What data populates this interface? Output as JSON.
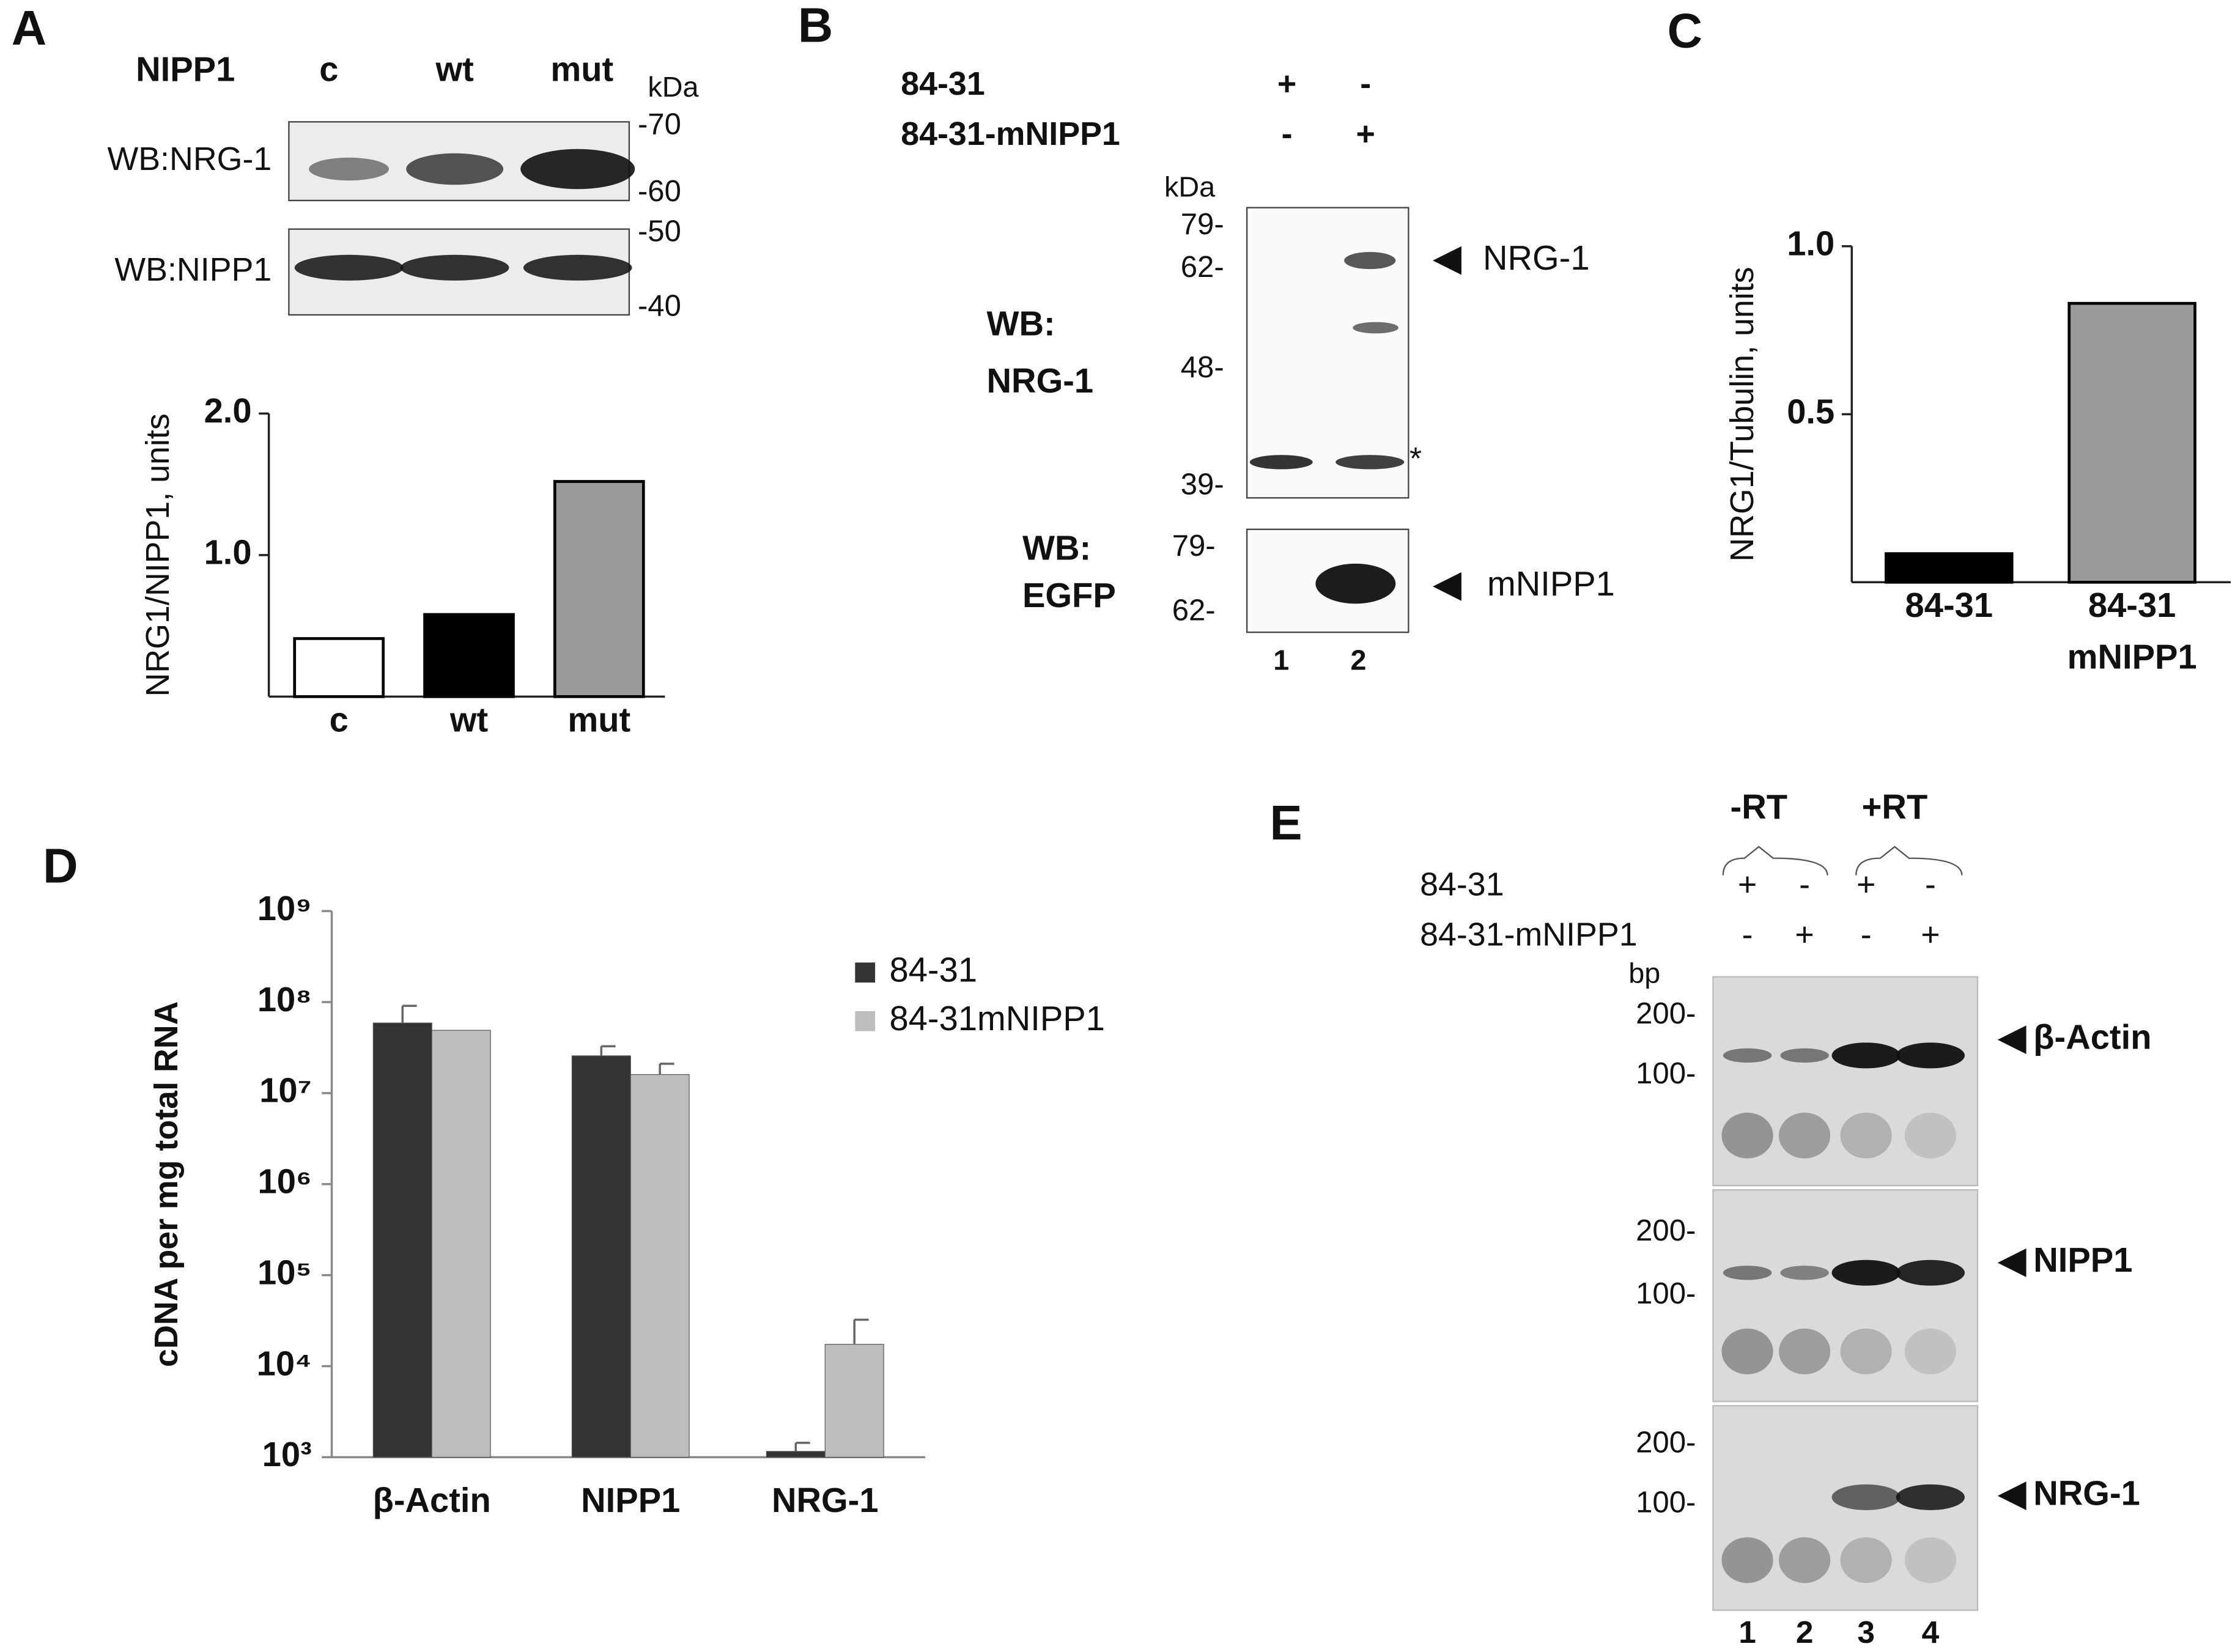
{
  "chart_data": [
    {
      "type": "bar",
      "ylabel": "NRG1/NIPP1, units",
      "categories": [
        [
          "c"
        ],
        [
          "wt"
        ],
        [
          "mut"
        ]
      ],
      "values": [
        0.41,
        0.58,
        1.52
      ],
      "colors": [
        "#ffffff",
        "#000000",
        "#9a9a9a"
      ],
      "ylim": [
        0,
        2.0
      ],
      "yticks": [
        {
          "value": 1,
          "label": "1.0"
        },
        {
          "value": 2,
          "label": "2.0"
        }
      ]
    },
    {
      "type": "bar",
      "ylabel": "NRG1/Tubulin, units",
      "categories": [
        [
          "84-31"
        ],
        [
          "84-31",
          "mNIPP1"
        ]
      ],
      "values": [
        0.085,
        0.83
      ],
      "colors": [
        "#000000",
        "#9a9a9a"
      ],
      "ylim": [
        0,
        1.0
      ],
      "yticks": [
        {
          "value": 0.5,
          "label": "0.5"
        },
        {
          "value": 1,
          "label": "1.0"
        }
      ]
    },
    {
      "type": "grouped-bar",
      "ylabel": "cDNA per mg total RNA",
      "log_scale": true,
      "legend": "upper right",
      "categories": [
        [
          "β-Actin"
        ],
        [
          "NIPP1"
        ],
        [
          "NRG-1"
        ]
      ],
      "series": [
        {
          "name": "84-31",
          "color": "#333333",
          "values": [
            59000000,
            25700000,
            1160
          ],
          "errors": [
            32000000,
            7000000,
            280
          ]
        },
        {
          "name": "84-31mNIPP1",
          "color": "#bdbdbd",
          "values": [
            49000000,
            16000000,
            17400
          ],
          "errors": [
            null,
            5000000,
            15000
          ]
        }
      ],
      "ylim": [
        1000,
        1000000000
      ],
      "yticks": [
        {
          "value": 1000,
          "label": "10³"
        },
        {
          "value": 10000,
          "label": "10⁴"
        },
        {
          "value": 100000,
          "label": "10⁵"
        },
        {
          "value": 1000000,
          "label": "10⁶"
        },
        {
          "value": 10000000,
          "label": "10⁷"
        },
        {
          "value": 100000000,
          "label": "10⁸"
        },
        {
          "value": 1000000000,
          "label": "10⁹"
        }
      ]
    }
  ],
  "panel_a": {
    "letter": "A",
    "header": "NIPP1",
    "lanes": [
      "c",
      "wt",
      "mut"
    ],
    "unit": "kDa",
    "blots": [
      {
        "label": "WB:NRG-1",
        "markers": [
          "-70",
          "-60"
        ]
      },
      {
        "label": "WB:NIPP1",
        "markers": [
          "-50",
          "-40"
        ]
      }
    ]
  },
  "panel_b": {
    "letter": "B",
    "rows": [
      {
        "label": "84-31",
        "signs": [
          "+",
          "-"
        ]
      },
      {
        "label": "84-31-mNIPP1",
        "signs": [
          "-",
          "+"
        ]
      }
    ],
    "unit": "kDa",
    "blots": [
      {
        "label": [
          "WB:",
          "NRG-1"
        ],
        "markers": [
          "79-",
          "62-",
          "48-",
          "39-"
        ],
        "arrow": "NRG-1",
        "star": "*"
      },
      {
        "label": [
          "WB:",
          "EGFP"
        ],
        "markers": [
          "79-",
          "62-"
        ],
        "arrow": "mNIPP1"
      }
    ],
    "lanes": [
      "1",
      "2"
    ]
  },
  "panel_c": {
    "letter": "C"
  },
  "panel_d": {
    "letter": "D"
  },
  "panel_e": {
    "letter": "E",
    "groups": [
      "-RT",
      "+RT"
    ],
    "rows": [
      {
        "label": "84-31",
        "signs": [
          "+",
          "-",
          "+",
          "-"
        ]
      },
      {
        "label": "84-31-mNIPP1",
        "signs": [
          "-",
          "+",
          "-",
          "+"
        ]
      }
    ],
    "unit": "bp",
    "gels": [
      {
        "markers": [
          "200-",
          "100-"
        ],
        "arrow": "β-Actin"
      },
      {
        "markers": [
          "200-",
          "100-"
        ],
        "arrow": "NIPP1"
      },
      {
        "markers": [
          "200-",
          "100-"
        ],
        "arrow": "NRG-1"
      }
    ],
    "lanes": [
      "1",
      "2",
      "3",
      "4"
    ]
  }
}
